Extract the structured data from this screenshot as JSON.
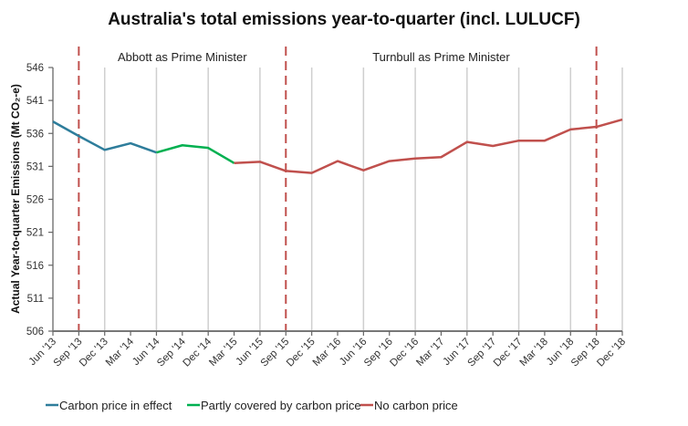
{
  "chart_data": {
    "type": "line",
    "title": "Australia's total emissions year-to-quarter (incl. LULUCF)",
    "xlabel": "",
    "ylabel": "Actual Year-to-quarter Emissions (Mt CO₂-e)",
    "ylim": [
      506,
      546
    ],
    "yticks": [
      506,
      511,
      516,
      521,
      526,
      531,
      536,
      541,
      546
    ],
    "grid": "vertical gridlines every June and December",
    "categories": [
      "Jun '13",
      "Sep '13",
      "Dec '13",
      "Mar '14",
      "Jun '14",
      "Sep '14",
      "Dec '14",
      "Mar '15",
      "Jun '15",
      "Sep '15",
      "Dec '15",
      "Mar '16",
      "Jun '16",
      "Sep '16",
      "Dec '16",
      "Mar '17",
      "Jun '17",
      "Sep '17",
      "Dec '17",
      "Mar '18",
      "Jun '18",
      "Sep '18",
      "Dec '18"
    ],
    "values": [
      537.8,
      535.6,
      533.5,
      534.5,
      533.1,
      534.2,
      533.8,
      531.5,
      531.7,
      530.3,
      530.0,
      531.8,
      530.4,
      531.8,
      532.2,
      532.4,
      534.7,
      534.1,
      534.9,
      534.9,
      536.6,
      537.0,
      538.1
    ],
    "series": [
      {
        "name": "Carbon price in effect",
        "color": "#2E7D9B",
        "start_index": 0,
        "end_index": 4
      },
      {
        "name": "Partly covered by carbon price",
        "color": "#00B050",
        "start_index": 4,
        "end_index": 7
      },
      {
        "name": "No carbon price",
        "color": "#C0504D",
        "start_index": 7,
        "end_index": 22
      }
    ],
    "annotations": [
      {
        "type": "vline-dashed",
        "at": "Sep '13",
        "color": "#C0504D"
      },
      {
        "type": "vline-dashed",
        "at": "Sep '15",
        "color": "#C0504D"
      },
      {
        "type": "vline-dashed",
        "at": "Sep '18",
        "color": "#C0504D"
      },
      {
        "type": "region-label",
        "text": "Abbott as Prime Minister",
        "from": "Sep '13",
        "to": "Sep '15"
      },
      {
        "type": "region-label",
        "text": "Turnbull as Prime Minister",
        "from": "Sep '15",
        "to": "Sep '18"
      }
    ],
    "legend_position": "bottom"
  }
}
